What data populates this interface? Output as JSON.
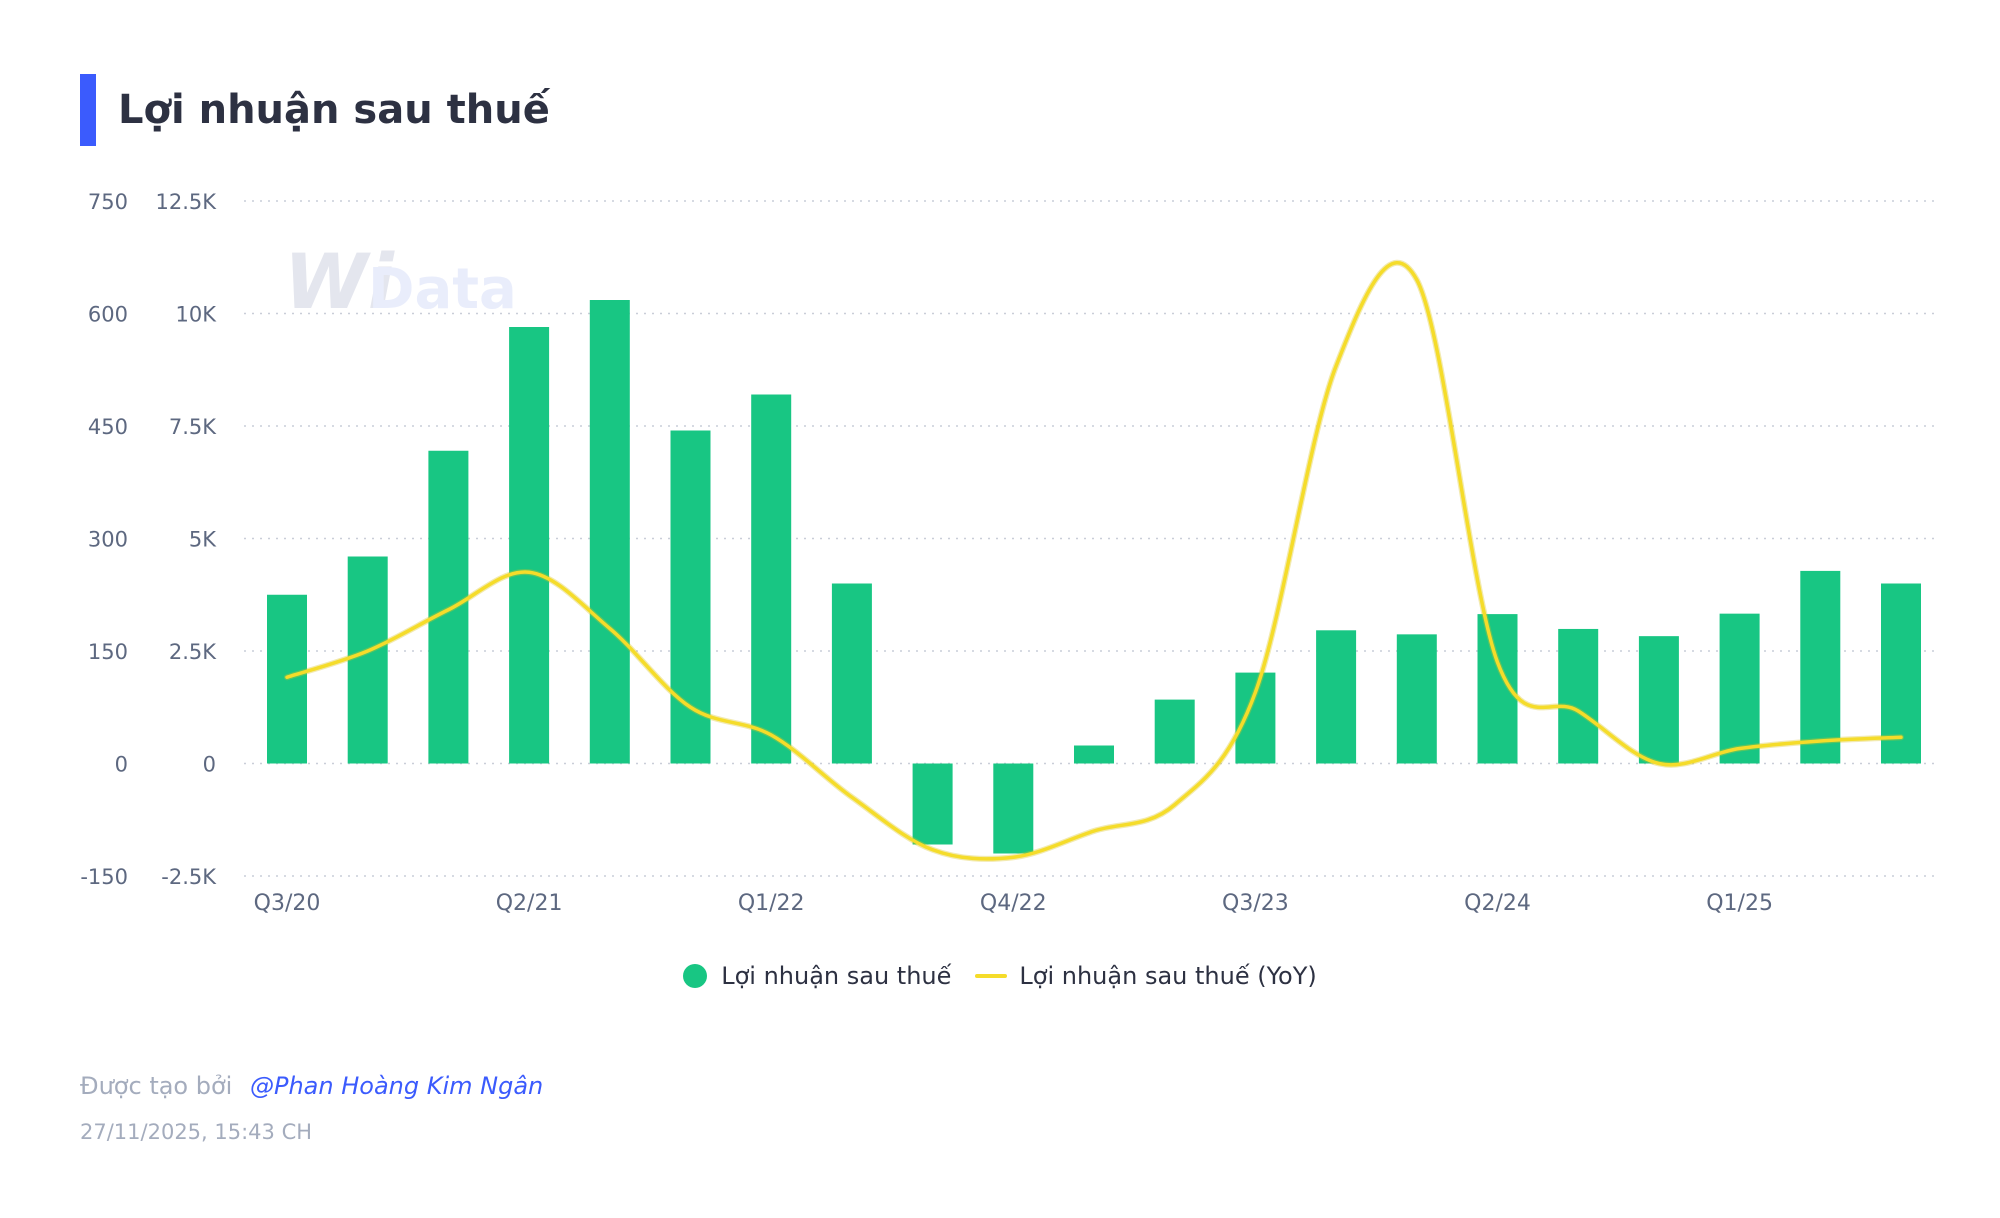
{
  "header": {
    "title": "Lợi nhuận sau thuế"
  },
  "watermark": {
    "text": "Data",
    "logo": "Wi"
  },
  "chart_data": {
    "type": "bar",
    "title": "Lợi nhuận sau thuế",
    "categories": [
      "Q3/20",
      "Q4/20",
      "Q1/21",
      "Q2/21",
      "Q3/21",
      "Q4/21",
      "Q1/22",
      "Q2/22",
      "Q3/22",
      "Q4/22",
      "Q1/23",
      "Q2/23",
      "Q3/23",
      "Q4/23",
      "Q1/24",
      "Q2/24",
      "Q3/24",
      "Q4/24",
      "Q1/25",
      "Q2/25",
      "Q3/25"
    ],
    "x_tick_labels": [
      "Q3/20",
      "Q2/21",
      "Q1/22",
      "Q4/22",
      "Q3/23",
      "Q2/24",
      "Q1/25"
    ],
    "y_left": {
      "ticks": [
        "12.5K",
        "10K",
        "7.5K",
        "5K",
        "2.5K",
        "0",
        "-2.5K"
      ],
      "ylim": [
        -2500,
        12500
      ]
    },
    "y_right": {
      "ticks": [
        "750",
        "600",
        "450",
        "300",
        "150",
        "0",
        "-150"
      ],
      "ylim": [
        -150,
        750
      ]
    },
    "series": [
      {
        "name": "Lợi nhuận sau thuế",
        "axis": "left",
        "type": "bar",
        "color": "#18c683",
        "values": [
          3750,
          4600,
          6950,
          9700,
          10300,
          7400,
          8200,
          4000,
          -1800,
          -2000,
          400,
          1420,
          2020,
          2960,
          2870,
          3320,
          2990,
          2830,
          3330,
          4280,
          4000
        ]
      },
      {
        "name": "Lợi nhuận sau thuế (YoY)",
        "axis": "right",
        "type": "line",
        "color": "#f5dc2a",
        "values": [
          115,
          150,
          205,
          255,
          180,
          75,
          38,
          -45,
          -115,
          -125,
          -90,
          -55,
          95,
          530,
          645,
          135,
          70,
          0,
          20,
          30,
          35
        ]
      }
    ],
    "legend": {
      "position": "bottom-center"
    },
    "grid": true
  },
  "footer": {
    "credit_label": "Được tạo bởi",
    "credit_author": "@Phan Hoàng Kim Ngân",
    "timestamp": "27/11/2025, 15:43 CH"
  }
}
